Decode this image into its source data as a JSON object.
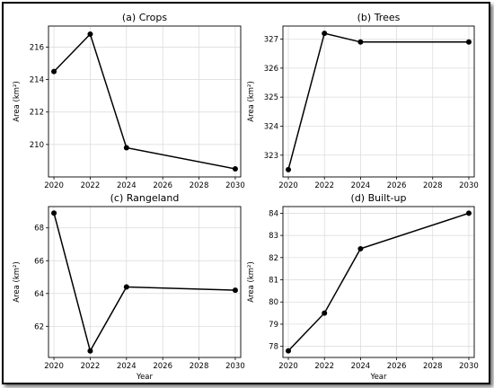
{
  "chart_data": [
    {
      "type": "line",
      "title": "(a) Crops",
      "xlabel": "",
      "ylabel": "Area (km²)",
      "x": [
        2020,
        2022,
        2024,
        2030
      ],
      "y": [
        214.5,
        216.8,
        209.8,
        208.5
      ],
      "xlim": [
        2019.7,
        2030.3
      ],
      "ylim": [
        208.0,
        217.3
      ],
      "xticks": [
        "2020",
        "2022",
        "2024",
        "2026",
        "2028",
        "2030"
      ],
      "yticks": [
        "210",
        "212",
        "214",
        "216"
      ],
      "grid": true
    },
    {
      "type": "line",
      "title": "(b) Trees",
      "xlabel": "",
      "ylabel": "Area (km²)",
      "x": [
        2020,
        2022,
        2024,
        2030
      ],
      "y": [
        322.5,
        327.2,
        326.9,
        326.9
      ],
      "xlim": [
        2019.7,
        2030.3
      ],
      "ylim": [
        322.25,
        327.45
      ],
      "xticks": [
        "2020",
        "2022",
        "2024",
        "2026",
        "2028",
        "2030"
      ],
      "yticks": [
        "323",
        "324",
        "325",
        "326",
        "327"
      ],
      "grid": true
    },
    {
      "type": "line",
      "title": "(c) Rangeland",
      "xlabel": "Year",
      "ylabel": "Area (km²)",
      "x": [
        2020,
        2022,
        2024,
        2030
      ],
      "y": [
        68.9,
        60.5,
        64.4,
        64.2
      ],
      "xlim": [
        2019.7,
        2030.3
      ],
      "ylim": [
        60.1,
        69.3
      ],
      "xticks": [
        "2020",
        "2022",
        "2024",
        "2026",
        "2028",
        "2030"
      ],
      "yticks": [
        "62",
        "64",
        "66",
        "68"
      ],
      "grid": true
    },
    {
      "type": "line",
      "title": "(d) Built-up",
      "xlabel": "Year",
      "ylabel": "Area (km²)",
      "x": [
        2020,
        2022,
        2024,
        2030
      ],
      "y": [
        77.8,
        79.5,
        82.4,
        84.0
      ],
      "xlim": [
        2019.7,
        2030.3
      ],
      "ylim": [
        77.5,
        84.3
      ],
      "xticks": [
        "2020",
        "2022",
        "2024",
        "2026",
        "2028",
        "2030"
      ],
      "yticks": [
        "78",
        "79",
        "80",
        "81",
        "82",
        "83",
        "84"
      ],
      "grid": true
    }
  ]
}
